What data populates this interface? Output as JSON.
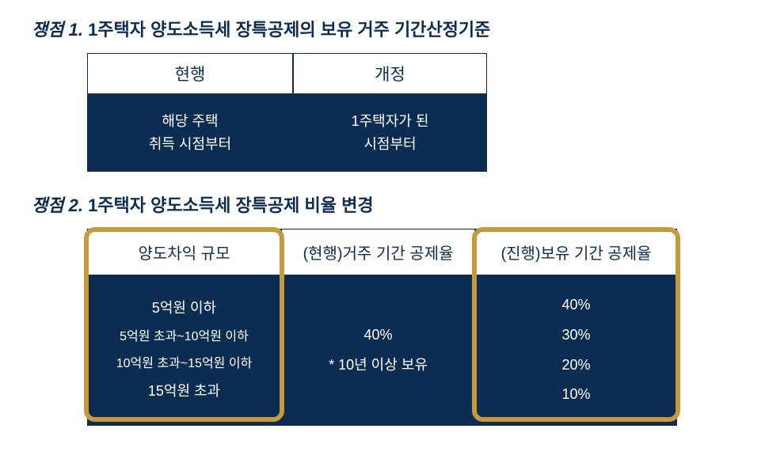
{
  "colors": {
    "navy": "#0d2c52",
    "gold": "#c69a3c",
    "white": "#ffffff"
  },
  "section1": {
    "title_prefix": "쟁점 1.",
    "title_text": " 1주택자 양도소득세 장특공제의 보유 거주 기간산정기준",
    "col1_header": "현행",
    "col1_body_line1": "해당 주택",
    "col1_body_line2": "취득 시점부터",
    "col2_header": "개정",
    "col2_body_line1": "1주택자가 된",
    "col2_body_line2": "시점부터"
  },
  "section2": {
    "title_prefix": "쟁점 2.",
    "title_text": " 1주택자 양도소득세 장특공제 비율 변경",
    "col1": {
      "header": "양도차익 규모",
      "rows": [
        "5억원 이하",
        "5억원 초과~10억원 이하",
        "10억원 초과~15억원 이하",
        "15억원 초과"
      ]
    },
    "col2": {
      "header": "(현행)거주 기간 공제율",
      "line1": "40%",
      "line2": "* 10년 이상 보유"
    },
    "col3": {
      "header": "(진행)보유 기간 공제율",
      "rows": [
        "40%",
        "30%",
        "20%",
        "10%"
      ]
    }
  },
  "style": {
    "title_fontsize": 22,
    "header_fontsize": 21,
    "body_fontsize": 18,
    "sub_fontsize": 16,
    "highlight_border_width": 6,
    "highlight_border_radius": 14
  }
}
